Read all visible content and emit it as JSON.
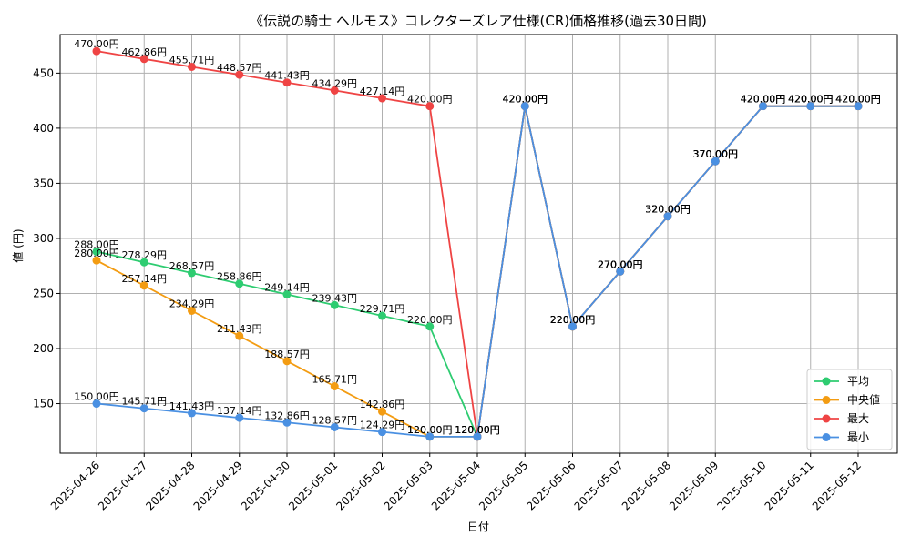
{
  "chart_data": {
    "type": "line",
    "title": "《伝説の騎士 ヘルモス》コレクターズレア仕様(CR)価格推移(過去30日間)",
    "xlabel": "日付",
    "ylabel": "値 (円)",
    "ylim": [
      105,
      485
    ],
    "yticks": [
      150,
      200,
      250,
      300,
      350,
      400,
      450
    ],
    "grid": true,
    "legend_position": "bottom-right",
    "value_suffix": "円",
    "categories": [
      "2025-04-26",
      "2025-04-27",
      "2025-04-28",
      "2025-04-29",
      "2025-04-30",
      "2025-05-01",
      "2025-05-02",
      "2025-05-03",
      "2025-05-04",
      "2025-05-05",
      "2025-05-06",
      "2025-05-07",
      "2025-05-08",
      "2025-05-09",
      "2025-05-10",
      "2025-05-11",
      "2025-05-12"
    ],
    "series": [
      {
        "name": "平均",
        "color": "#2ecc71",
        "values": [
          288.0,
          278.29,
          268.57,
          258.86,
          249.14,
          239.43,
          229.71,
          220.0,
          120.0,
          420.0,
          220.0,
          270.0,
          320.0,
          370.0,
          420.0,
          420.0,
          420.0
        ]
      },
      {
        "name": "中央値",
        "color": "#f39c12",
        "values": [
          280.0,
          257.14,
          234.29,
          211.43,
          188.57,
          165.71,
          142.86,
          120.0,
          120.0,
          420.0,
          220.0,
          270.0,
          320.0,
          370.0,
          420.0,
          420.0,
          420.0
        ]
      },
      {
        "name": "最大",
        "color": "#ef4444",
        "values": [
          470.0,
          462.86,
          455.71,
          448.57,
          441.43,
          434.29,
          427.14,
          420.0,
          120.0,
          420.0,
          220.0,
          270.0,
          320.0,
          370.0,
          420.0,
          420.0,
          420.0
        ]
      },
      {
        "name": "最小",
        "color": "#4a90e2",
        "values": [
          150.0,
          145.71,
          141.43,
          137.14,
          132.86,
          128.57,
          124.29,
          120.0,
          120.0,
          420.0,
          220.0,
          270.0,
          320.0,
          370.0,
          420.0,
          420.0,
          420.0
        ]
      }
    ]
  }
}
